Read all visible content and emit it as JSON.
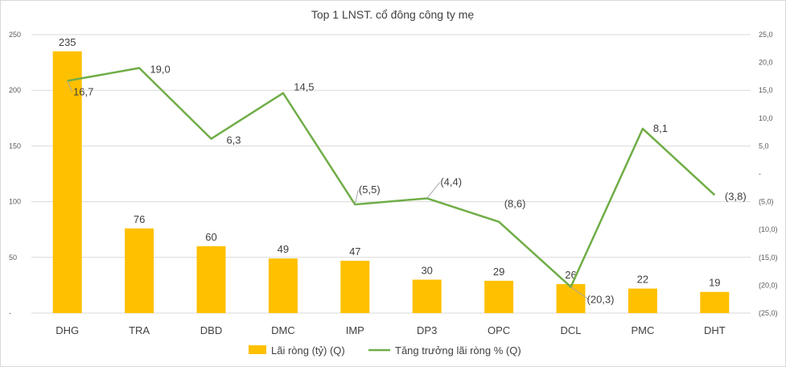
{
  "chart_data": {
    "type": "bar",
    "title": "Top 1 LNST. cổ đông công ty mẹ",
    "categories": [
      "DHG",
      "TRA",
      "DBD",
      "DMC",
      "IMP",
      "DP3",
      "OPC",
      "DCL",
      "PMC",
      "DHT"
    ],
    "series": [
      {
        "name": "Lãi ròng (tỷ) (Q)",
        "type": "bar",
        "axis": "left",
        "color": "#FFC000",
        "values": [
          235,
          76,
          60,
          49,
          47,
          30,
          29,
          26,
          22,
          19
        ],
        "labels": [
          "235",
          "76",
          "60",
          "49",
          "47",
          "30",
          "29",
          "26",
          "22",
          "19"
        ]
      },
      {
        "name": "Tăng trưởng lãi ròng % (Q)",
        "type": "line",
        "axis": "right",
        "color": "#70AD47",
        "values": [
          16.7,
          19.0,
          6.3,
          14.5,
          -5.5,
          -4.4,
          -8.6,
          -20.3,
          8.1,
          -3.8
        ],
        "labels": [
          "16,7",
          "19,0",
          "6,3",
          "14,5",
          "(5,5)",
          "(4,4)",
          "(8,6)",
          "(20,3)",
          "8,1",
          "(3,8)"
        ]
      }
    ],
    "y_left": {
      "ylim": [
        0,
        250
      ],
      "ticks": [
        0,
        50,
        100,
        150,
        200,
        250
      ],
      "tick_labels": [
        "-",
        "50",
        "100",
        "150",
        "200",
        "250"
      ]
    },
    "y_right": {
      "ylim": [
        -25,
        25
      ],
      "ticks": [
        25,
        20,
        15,
        10,
        5,
        0,
        -5,
        -10,
        -15,
        -20,
        -25
      ],
      "tick_labels": [
        "25,0",
        "20,0",
        "15,0",
        "10,0",
        "5,0",
        "-",
        "(5,0)",
        "(10,0)",
        "(15,0)",
        "(20,0)",
        "(25,0)"
      ]
    },
    "grid": true,
    "legend_position": "bottom"
  }
}
